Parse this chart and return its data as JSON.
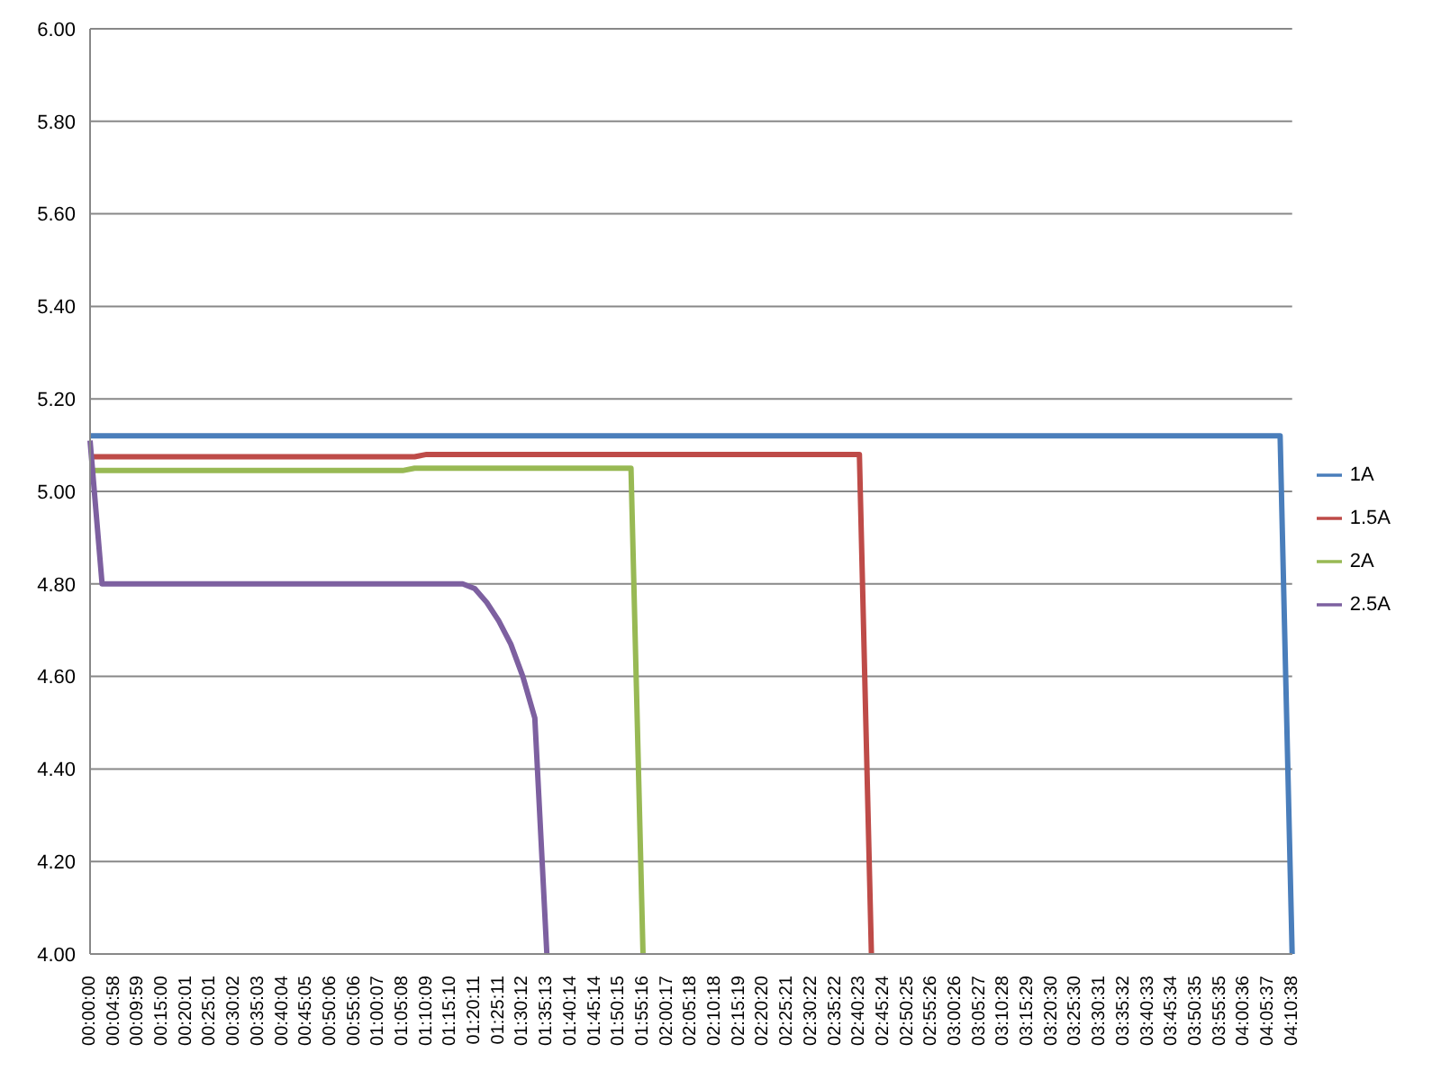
{
  "chart_data": {
    "type": "line",
    "categories": [
      "00:00:00",
      null,
      "00:04:58",
      null,
      "00:09:59",
      null,
      "00:15:00",
      null,
      "00:20:01",
      null,
      "00:25:01",
      null,
      "00:30:02",
      null,
      "00:35:03",
      null,
      "00:40:04",
      null,
      "00:45:05",
      null,
      "00:50:06",
      null,
      "00:55:06",
      null,
      "01:00:07",
      null,
      "01:05:08",
      null,
      "01:10:09",
      null,
      "01:15:10",
      null,
      "01:20:11",
      null,
      "01:25:11",
      null,
      "01:30:12",
      null,
      "01:35:13",
      null,
      "01:40:14",
      null,
      "01:45:14",
      null,
      "01:50:15",
      null,
      "01:55:16",
      null,
      "02:00:17",
      null,
      "02:05:18",
      null,
      "02:10:18",
      null,
      "02:15:19",
      null,
      "02:20:20",
      null,
      "02:25:21",
      null,
      "02:30:22",
      null,
      "02:35:22",
      null,
      "02:40:23",
      null,
      "02:45:24",
      null,
      "02:50:25",
      null,
      "02:55:26",
      null,
      "03:00:26",
      null,
      "03:05:27",
      null,
      "03:10:28",
      null,
      "03:15:29",
      null,
      "03:20:30",
      null,
      "03:25:30",
      null,
      "03:30:31",
      null,
      "03:35:32",
      null,
      "03:40:33",
      null,
      "03:45:34",
      null,
      "03:50:35",
      null,
      "03:55:35",
      null,
      "04:00:36",
      null,
      "04:05:37",
      null,
      "04:10:38"
    ],
    "series": [
      {
        "name": "1A",
        "color": "#4a7ebb",
        "values": [
          5.12,
          5.12,
          5.12,
          5.12,
          5.12,
          5.12,
          5.12,
          5.12,
          5.12,
          5.12,
          5.12,
          5.12,
          5.12,
          5.12,
          5.12,
          5.12,
          5.12,
          5.12,
          5.12,
          5.12,
          5.12,
          5.12,
          5.12,
          5.12,
          5.12,
          5.12,
          5.12,
          5.12,
          5.12,
          5.12,
          5.12,
          5.12,
          5.12,
          5.12,
          5.12,
          5.12,
          5.12,
          5.12,
          5.12,
          5.12,
          5.12,
          5.12,
          5.12,
          5.12,
          5.12,
          5.12,
          5.12,
          5.12,
          5.12,
          5.12,
          5.12,
          5.12,
          5.12,
          5.12,
          5.12,
          5.12,
          5.12,
          5.12,
          5.12,
          5.12,
          5.12,
          5.12,
          5.12,
          5.12,
          5.12,
          5.12,
          5.12,
          5.12,
          5.12,
          5.12,
          5.12,
          5.12,
          5.12,
          5.12,
          5.12,
          5.12,
          5.12,
          5.12,
          5.12,
          5.12,
          5.12,
          5.12,
          5.12,
          5.12,
          5.12,
          5.12,
          5.12,
          5.12,
          5.12,
          5.12,
          5.12,
          5.12,
          5.12,
          5.12,
          5.12,
          5.12,
          5.12,
          5.12,
          5.12,
          5.12,
          4.0
        ]
      },
      {
        "name": "1.5A",
        "color": "#be4b48",
        "values": [
          5.075,
          5.075,
          5.075,
          5.075,
          5.075,
          5.075,
          5.075,
          5.075,
          5.075,
          5.075,
          5.075,
          5.075,
          5.075,
          5.075,
          5.075,
          5.075,
          5.075,
          5.075,
          5.075,
          5.075,
          5.075,
          5.075,
          5.075,
          5.075,
          5.075,
          5.075,
          5.075,
          5.075,
          5.08,
          5.08,
          5.08,
          5.08,
          5.08,
          5.08,
          5.08,
          5.08,
          5.08,
          5.08,
          5.08,
          5.08,
          5.08,
          5.08,
          5.08,
          5.08,
          5.08,
          5.08,
          5.08,
          5.08,
          5.08,
          5.08,
          5.08,
          5.08,
          5.08,
          5.08,
          5.08,
          5.08,
          5.08,
          5.08,
          5.08,
          5.08,
          5.08,
          5.08,
          5.08,
          5.08,
          5.08,
          4.0,
          null,
          null,
          null,
          null,
          null,
          null,
          null,
          null,
          null,
          null,
          null,
          null,
          null,
          null,
          null,
          null,
          null,
          null,
          null,
          null,
          null,
          null,
          null,
          null,
          null,
          null,
          null,
          null,
          null,
          null,
          null,
          null,
          null,
          null,
          null
        ]
      },
      {
        "name": "2A",
        "color": "#98b954",
        "values": [
          5.045,
          5.045,
          5.045,
          5.045,
          5.045,
          5.045,
          5.045,
          5.045,
          5.045,
          5.045,
          5.045,
          5.045,
          5.045,
          5.045,
          5.045,
          5.045,
          5.045,
          5.045,
          5.045,
          5.045,
          5.045,
          5.045,
          5.045,
          5.045,
          5.045,
          5.045,
          5.045,
          5.05,
          5.05,
          5.05,
          5.05,
          5.05,
          5.05,
          5.05,
          5.05,
          5.05,
          5.05,
          5.05,
          5.05,
          5.05,
          5.05,
          5.05,
          5.05,
          5.05,
          5.05,
          5.05,
          4.0,
          null,
          null,
          null,
          null,
          null,
          null,
          null,
          null,
          null,
          null,
          null,
          null,
          null,
          null,
          null,
          null,
          null,
          null,
          null,
          null,
          null,
          null,
          null,
          null,
          null,
          null,
          null,
          null,
          null,
          null,
          null,
          null,
          null,
          null,
          null,
          null,
          null,
          null,
          null,
          null,
          null,
          null,
          null,
          null,
          null,
          null,
          null,
          null,
          null,
          null,
          null,
          null,
          null,
          null
        ]
      },
      {
        "name": "2.5A",
        "color": "#7d60a0",
        "values": [
          5.11,
          4.8,
          4.8,
          4.8,
          4.8,
          4.8,
          4.8,
          4.8,
          4.8,
          4.8,
          4.8,
          4.8,
          4.8,
          4.8,
          4.8,
          4.8,
          4.8,
          4.8,
          4.8,
          4.8,
          4.8,
          4.8,
          4.8,
          4.8,
          4.8,
          4.8,
          4.8,
          4.8,
          4.8,
          4.8,
          4.8,
          4.8,
          4.79,
          4.76,
          4.72,
          4.67,
          4.6,
          4.51,
          4.0,
          null,
          null,
          null,
          null,
          null,
          null,
          null,
          null,
          null,
          null,
          null,
          null,
          null,
          null,
          null,
          null,
          null,
          null,
          null,
          null,
          null,
          null,
          null,
          null,
          null,
          null,
          null,
          null,
          null,
          null,
          null,
          null,
          null,
          null,
          null,
          null,
          null,
          null,
          null,
          null,
          null,
          null,
          null,
          null,
          null,
          null,
          null,
          null,
          null,
          null,
          null,
          null,
          null,
          null,
          null,
          null,
          null,
          null,
          null,
          null,
          null,
          null
        ]
      }
    ],
    "ylim": [
      4.0,
      6.0
    ],
    "yticks": [
      {
        "value": 4.0,
        "label": "4.00"
      },
      {
        "value": 4.2,
        "label": "4.20"
      },
      {
        "value": 4.4,
        "label": "4.40"
      },
      {
        "value": 4.6,
        "label": "4.60"
      },
      {
        "value": 4.8,
        "label": "4.80"
      },
      {
        "value": 5.0,
        "label": "5.00"
      },
      {
        "value": 5.2,
        "label": "5.20"
      },
      {
        "value": 5.4,
        "label": "5.40"
      },
      {
        "value": 5.6,
        "label": "5.60"
      },
      {
        "value": 5.8,
        "label": "5.80"
      },
      {
        "value": 6.0,
        "label": "6.00"
      }
    ],
    "grid": "y",
    "legend": "right",
    "marker": "none",
    "line_style": "solid"
  }
}
